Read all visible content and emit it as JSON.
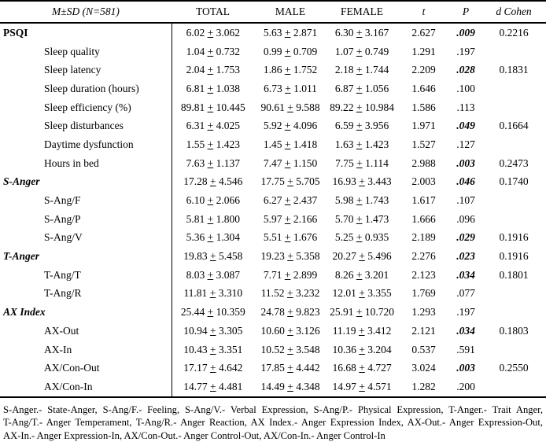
{
  "header": {
    "stub": "M±SD (N=581)",
    "columns": [
      "TOTAL",
      "MALE",
      "FEMALE",
      "t",
      "P",
      "d Cohen"
    ]
  },
  "rows": [
    {
      "label": "PSQI",
      "group": true,
      "italic": false,
      "total": [
        "6.02",
        "3.062"
      ],
      "male": [
        "5.63",
        "2.871"
      ],
      "female": [
        "6.30",
        "3.167"
      ],
      "t": "2.627",
      "p": ".009",
      "sig": true,
      "d": "0.2216"
    },
    {
      "label": "Sleep quality",
      "group": false,
      "italic": false,
      "total": [
        "1.04",
        "0.732"
      ],
      "male": [
        "0.99",
        "0.709"
      ],
      "female": [
        "1.07",
        "0.749"
      ],
      "t": "1.291",
      "p": ".197",
      "sig": false,
      "d": ""
    },
    {
      "label": "Sleep latency",
      "group": false,
      "italic": false,
      "total": [
        "2.04",
        "1.753"
      ],
      "male": [
        "1.86",
        "1.752"
      ],
      "female": [
        "2.18",
        "1.744"
      ],
      "t": "2.209",
      "p": ".028",
      "sig": true,
      "d": "0.1831"
    },
    {
      "label": "Sleep duration (hours)",
      "group": false,
      "italic": false,
      "total": [
        "6.81",
        "1.038"
      ],
      "male": [
        "6.73",
        "1.011"
      ],
      "female": [
        "6.87",
        "1.056"
      ],
      "t": "1.646",
      "p": ".100",
      "sig": false,
      "d": ""
    },
    {
      "label": "Sleep efficiency (%)",
      "group": false,
      "italic": false,
      "total": [
        "89.81",
        "10.445"
      ],
      "male": [
        "90.61",
        "9.588"
      ],
      "female": [
        "89.22",
        "10.984"
      ],
      "t": "1.586",
      "p": ".113",
      "sig": false,
      "d": ""
    },
    {
      "label": "Sleep disturbances",
      "group": false,
      "italic": false,
      "total": [
        "6.31",
        "4.025"
      ],
      "male": [
        "5.92",
        "4.096"
      ],
      "female": [
        "6.59",
        "3.956"
      ],
      "t": "1.971",
      "p": ".049",
      "sig": true,
      "d": "0.1664"
    },
    {
      "label": "Daytime dysfunction",
      "group": false,
      "italic": false,
      "total": [
        "1.55",
        "1.423"
      ],
      "male": [
        "1.45",
        "1.418"
      ],
      "female": [
        "1.63",
        "1.423"
      ],
      "t": "1.527",
      "p": ".127",
      "sig": false,
      "d": ""
    },
    {
      "label": "Hours in bed",
      "group": false,
      "italic": false,
      "total": [
        "7.63",
        "1.137"
      ],
      "male": [
        "7.47",
        "1.150"
      ],
      "female": [
        "7.75",
        "1.114"
      ],
      "t": "2.988",
      "p": ".003",
      "sig": true,
      "d": "0.2473"
    },
    {
      "label": "S-Anger",
      "group": true,
      "italic": true,
      "total": [
        "17.28",
        "4.546"
      ],
      "male": [
        "17.75",
        "5.705"
      ],
      "female": [
        "16.93",
        "3.443"
      ],
      "t": "2.003",
      "p": ".046",
      "sig": true,
      "d": "0.1740"
    },
    {
      "label": "S-Ang/F",
      "group": false,
      "italic": false,
      "total": [
        "6.10",
        "2.066"
      ],
      "male": [
        "6.27",
        "2.437"
      ],
      "female": [
        "5.98",
        "1.743"
      ],
      "t": "1.617",
      "p": ".107",
      "sig": false,
      "d": ""
    },
    {
      "label": "S-Ang/P",
      "group": false,
      "italic": false,
      "total": [
        "5.81",
        "1.800"
      ],
      "male": [
        "5.97",
        "2.166"
      ],
      "female": [
        "5.70",
        "1.473"
      ],
      "t": "1.666",
      "p": ".096",
      "sig": false,
      "d": ""
    },
    {
      "label": "S-Ang/V",
      "group": false,
      "italic": false,
      "total": [
        "5.36",
        "1.304"
      ],
      "male": [
        "5.51",
        "1.676"
      ],
      "female": [
        "5.25",
        "0.935"
      ],
      "t": "2.189",
      "p": ".029",
      "sig": true,
      "d": "0.1916"
    },
    {
      "label": "T-Anger",
      "group": true,
      "italic": true,
      "total": [
        "19.83",
        "5.458"
      ],
      "male": [
        "19.23",
        "5.358"
      ],
      "female": [
        "20.27",
        "5.496"
      ],
      "t": "2.276",
      "p": ".023",
      "sig": true,
      "d": "0.1916"
    },
    {
      "label": "T-Ang/T",
      "group": false,
      "italic": false,
      "total": [
        "8.03",
        "3.087"
      ],
      "male": [
        "7.71",
        "2.899"
      ],
      "female": [
        "8.26",
        "3.201"
      ],
      "t": "2.123",
      "p": ".034",
      "sig": true,
      "d": "0.1801"
    },
    {
      "label": "T-Ang/R",
      "group": false,
      "italic": false,
      "total": [
        "11.81",
        "3.310"
      ],
      "male": [
        "11.52",
        "3.232"
      ],
      "female": [
        "12.01",
        "3.355"
      ],
      "t": "1.769",
      "p": ".077",
      "sig": false,
      "d": ""
    },
    {
      "label": "AX Index",
      "group": true,
      "italic": true,
      "total": [
        "25.44",
        "10.359"
      ],
      "male": [
        "24.78",
        "9.823"
      ],
      "female": [
        "25.91",
        "10.720"
      ],
      "t": "1.293",
      "p": ".197",
      "sig": false,
      "d": ""
    },
    {
      "label": "AX-Out",
      "group": false,
      "italic": false,
      "total": [
        "10.94",
        "3.305"
      ],
      "male": [
        "10.60",
        "3.126"
      ],
      "female": [
        "11.19",
        "3.412"
      ],
      "t": "2.121",
      "p": ".034",
      "sig": true,
      "d": "0.1803"
    },
    {
      "label": "AX-In",
      "group": false,
      "italic": false,
      "total": [
        "10.43",
        "3.351"
      ],
      "male": [
        "10.52",
        "3.548"
      ],
      "female": [
        "10.36",
        "3.204"
      ],
      "t": "0.537",
      "p": ".591",
      "sig": false,
      "d": ""
    },
    {
      "label": "AX/Con-Out",
      "group": false,
      "italic": false,
      "total": [
        "17.17",
        "4.642"
      ],
      "male": [
        "17.85",
        "4.442"
      ],
      "female": [
        "16.68",
        "4.727"
      ],
      "t": "3.024",
      "p": ".003",
      "sig": true,
      "d": "0.2550"
    },
    {
      "label": "AX/Con-In",
      "group": false,
      "italic": false,
      "total": [
        "14.77",
        "4.481"
      ],
      "male": [
        "14.49",
        "4.348"
      ],
      "female": [
        "14.97",
        "4.571"
      ],
      "t": "1.282",
      "p": ".200",
      "sig": false,
      "d": ""
    }
  ],
  "plus_minus_symbol": "±",
  "footnote": {
    "lines": [
      "S-Anger.- State-Anger, S-Ang/F.- Feeling, S-Ang/V.- Verbal Expression, S-Ang/P.- Physical Expression, T-Anger.- Trait Anger,",
      "T-Ang/T.- Anger Temperament, T-Ang/R.- Anger Reaction, AX Index.- Anger Expression Index, AX-Out.- Anger Expression-Out,",
      "AX-In.- Anger Expression-In, AX/Con-Out.- Anger Control-Out, AX/Con-In.- Anger Control-In"
    ]
  },
  "colors": {
    "text": "#000000",
    "rule": "#000000",
    "background": "#ffffff"
  }
}
